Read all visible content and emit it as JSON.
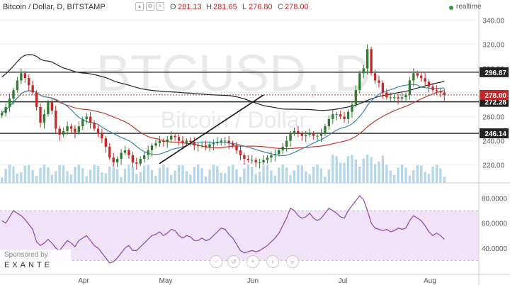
{
  "header": {
    "symbol": "Bitcoin / Dollar, D, BITSTAMP",
    "open_label": "O",
    "open": "281.13",
    "high_label": "H",
    "high": "281.65",
    "low_label": "L",
    "low": "276.80",
    "close_label": "C",
    "close": "278.00",
    "realtime": "realtime"
  },
  "watermark": {
    "line1": "BTCUSD, D",
    "line2": "Bitcoin / Dollar"
  },
  "sponsor": {
    "label": "Sponsored by",
    "name": "EXANTE"
  },
  "nav": [
    "−",
    "↺",
    "+",
    "›",
    "»"
  ],
  "colors": {
    "up": "#2e7d32",
    "down": "#c62828",
    "sma_long": "#222222",
    "sma_mid": "#c0392b",
    "sma_short": "#3a87ad",
    "rsi": "#8e44ad",
    "rsi_band": "#f1e3f7",
    "volume": "#a8cfe8",
    "price_marker": "#c62828"
  },
  "chart_data": [
    {
      "type": "candlestick",
      "title": "Bitcoin / Dollar, D, BITSTAMP",
      "y_scale": "linear",
      "ylim": [
        205,
        345
      ],
      "y_ticks": [
        "340.00",
        "320.00",
        "300.00",
        "280.00",
        "260.00",
        "240.00",
        "220.00"
      ],
      "x_tick_labels": [
        "Apr",
        "May",
        "Jun",
        "Jul",
        "Aug"
      ],
      "key_levels": [
        "296.87",
        "272.28",
        "246.14"
      ],
      "last_price": "278.00",
      "closes": [
        263,
        268,
        275,
        282,
        290,
        296,
        292,
        286,
        280,
        268,
        255,
        262,
        272,
        265,
        250,
        245,
        248,
        252,
        250,
        247,
        252,
        258,
        260,
        255,
        250,
        246,
        242,
        235,
        226,
        222,
        225,
        230,
        232,
        228,
        222,
        221,
        225,
        228,
        232,
        236,
        238,
        240,
        239,
        241,
        244,
        243,
        240,
        238,
        240,
        239,
        236,
        236,
        236,
        235,
        237,
        238,
        239,
        240,
        240,
        238,
        236,
        232,
        228,
        225,
        224,
        224,
        222,
        222,
        224,
        226,
        228,
        229,
        232,
        235,
        240,
        246,
        248,
        246,
        244,
        245,
        246,
        244,
        244,
        246,
        252,
        258,
        262,
        262,
        260,
        258,
        264,
        270,
        282,
        296,
        300,
        316,
        296,
        290,
        288,
        280,
        276,
        276,
        276,
        275,
        276,
        278,
        290,
        296,
        294,
        292,
        289,
        285,
        282,
        281,
        280,
        278
      ],
      "trend_line": {
        "from": [
          225,
          221
        ],
        "to": [
          372,
          278
        ]
      },
      "moving_averages": [
        "long",
        "mid",
        "short"
      ],
      "volume_axis": "hidden"
    },
    {
      "type": "line",
      "title": "RSI",
      "ylim": [
        20,
        90
      ],
      "y_ticks": [
        "80.0000",
        "60.0000",
        "40.0000"
      ],
      "bands": [
        30,
        70
      ],
      "values": [
        62,
        60,
        65,
        70,
        68,
        66,
        63,
        59,
        55,
        45,
        42,
        44,
        47,
        44,
        40,
        38,
        42,
        46,
        44,
        41,
        46,
        48,
        50,
        46,
        42,
        40,
        36,
        32,
        28,
        29,
        32,
        36,
        40,
        42,
        38,
        38,
        41,
        44,
        47,
        50,
        51,
        53,
        50,
        52,
        55,
        54,
        50,
        48,
        50,
        49,
        46,
        46,
        48,
        46,
        47,
        50,
        53,
        56,
        55,
        51,
        48,
        43,
        38,
        36,
        37,
        38,
        37,
        38,
        40,
        42,
        45,
        48,
        52,
        58,
        64,
        72,
        70,
        66,
        64,
        65,
        68,
        64,
        62,
        64,
        68,
        72,
        70,
        68,
        65,
        64,
        70,
        74,
        78,
        82,
        79,
        70,
        60,
        56,
        55,
        54,
        55,
        53,
        54,
        56,
        55,
        56,
        62,
        66,
        64,
        62,
        58,
        53,
        50,
        52,
        50,
        47
      ]
    }
  ]
}
